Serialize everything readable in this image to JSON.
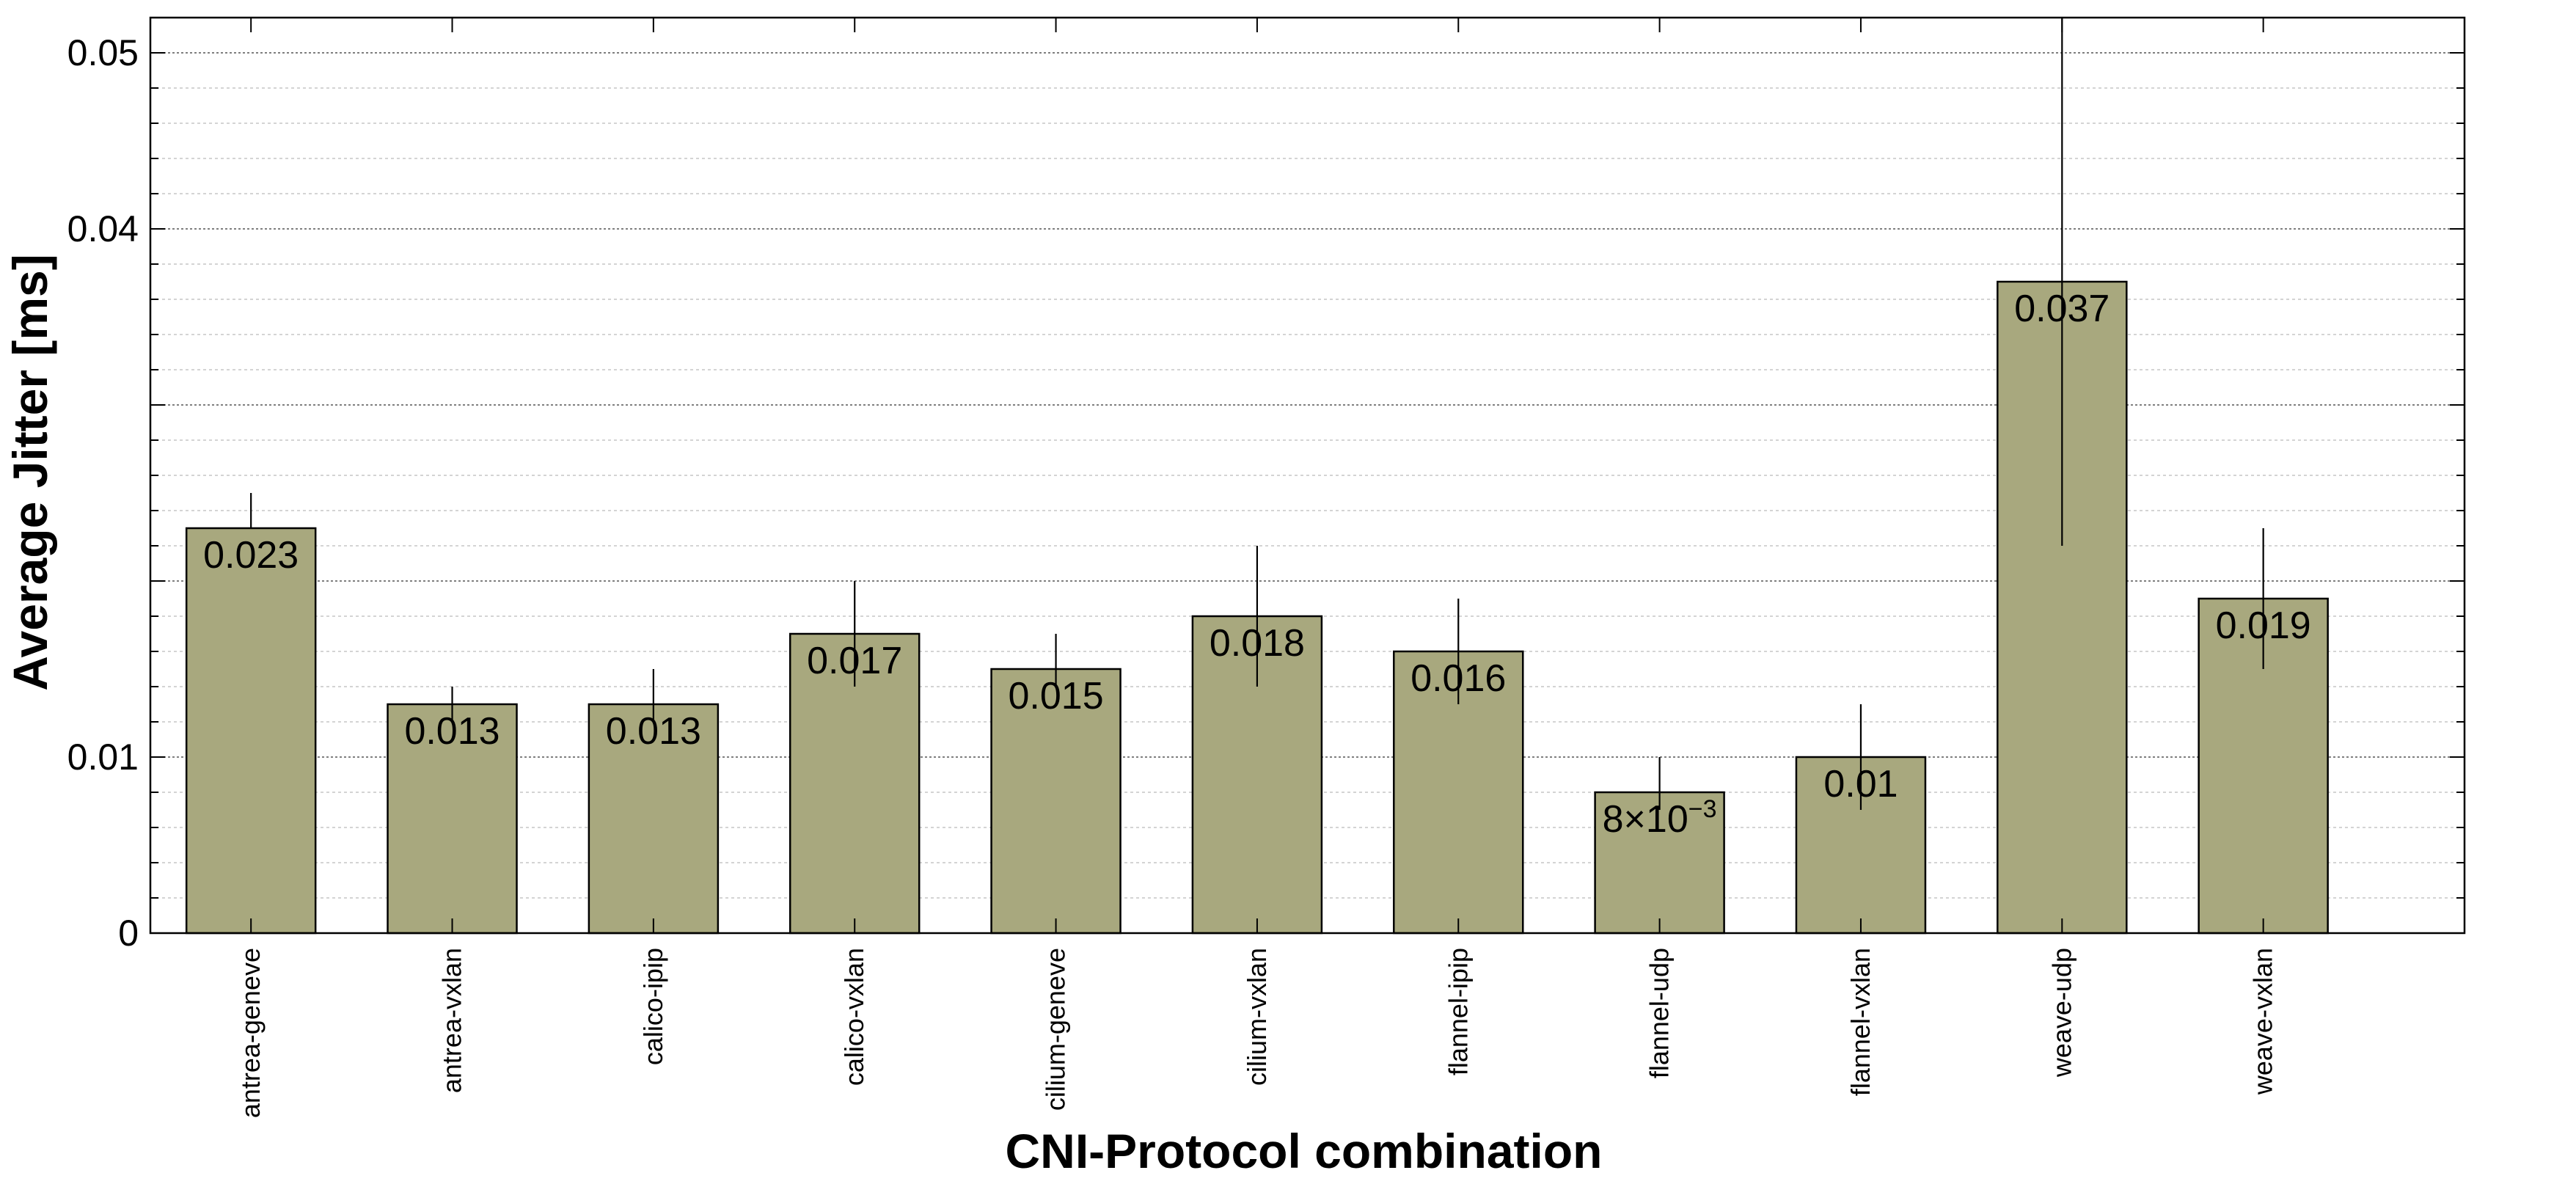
{
  "chart_data": {
    "type": "bar",
    "title": "",
    "xlabel": "CNI-Protocol combination",
    "ylabel": "Average Jitter [ms]",
    "ylim": [
      0,
      0.052
    ],
    "ytick_values": [
      0,
      0.01,
      0.04,
      0.05
    ],
    "ytick_labels": [
      "0",
      "0.01",
      "0.04",
      "0.05"
    ],
    "grid": true,
    "categories": [
      "antrea-geneve",
      "antrea-vxlan",
      "calico-ipip",
      "calico-vxlan",
      "cilium-geneve",
      "cilium-vxlan",
      "flannel-ipip",
      "flannel-udp",
      "flannel-vxlan",
      "weave-udp",
      "weave-vxlan"
    ],
    "values": [
      0.023,
      0.013,
      0.013,
      0.017,
      0.015,
      0.018,
      0.016,
      0.008,
      0.01,
      0.037,
      0.019
    ],
    "value_labels": [
      "0.023",
      "0.013",
      "0.013",
      "0.017",
      "0.015",
      "0.018",
      "0.016",
      "8×10",
      "0.01",
      "0.037",
      "0.019"
    ],
    "value_label_exponent": "−3",
    "error_low": [
      0.023,
      0.012,
      0.012,
      0.014,
      0.014,
      0.014,
      0.013,
      0.007,
      0.007,
      0.022,
      0.015
    ],
    "error_high": [
      0.025,
      0.014,
      0.015,
      0.02,
      0.017,
      0.022,
      0.019,
      0.01,
      0.013,
      0.052,
      0.023
    ],
    "colors": {
      "bar": "#a8a87e",
      "edge": "#000000",
      "grid_major": "#555555",
      "grid_minor": "#bbbbbb"
    }
  }
}
